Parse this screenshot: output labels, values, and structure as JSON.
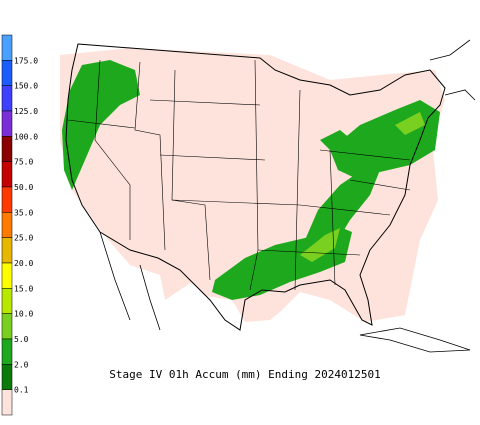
{
  "legend": {
    "labels": [
      "175.0",
      "150.0",
      "125.0",
      "100.0",
      "75.0",
      "50.0",
      "35.0",
      "25.0",
      "20.0",
      "15.0",
      "10.0",
      "5.0",
      "2.0",
      "0.1"
    ],
    "colors": [
      "#4aa0ff",
      "#1c5cff",
      "#3f3fff",
      "#7a2fd8",
      "#8b0000",
      "#c40000",
      "#ff3a00",
      "#ff7a00",
      "#e8b800",
      "#ffff00",
      "#b8e800",
      "#7ad020",
      "#1ea81e",
      "#0a7a0a",
      "#fde3db"
    ]
  },
  "caption": "Stage IV 01h Accum (mm) Ending 2024012501"
}
